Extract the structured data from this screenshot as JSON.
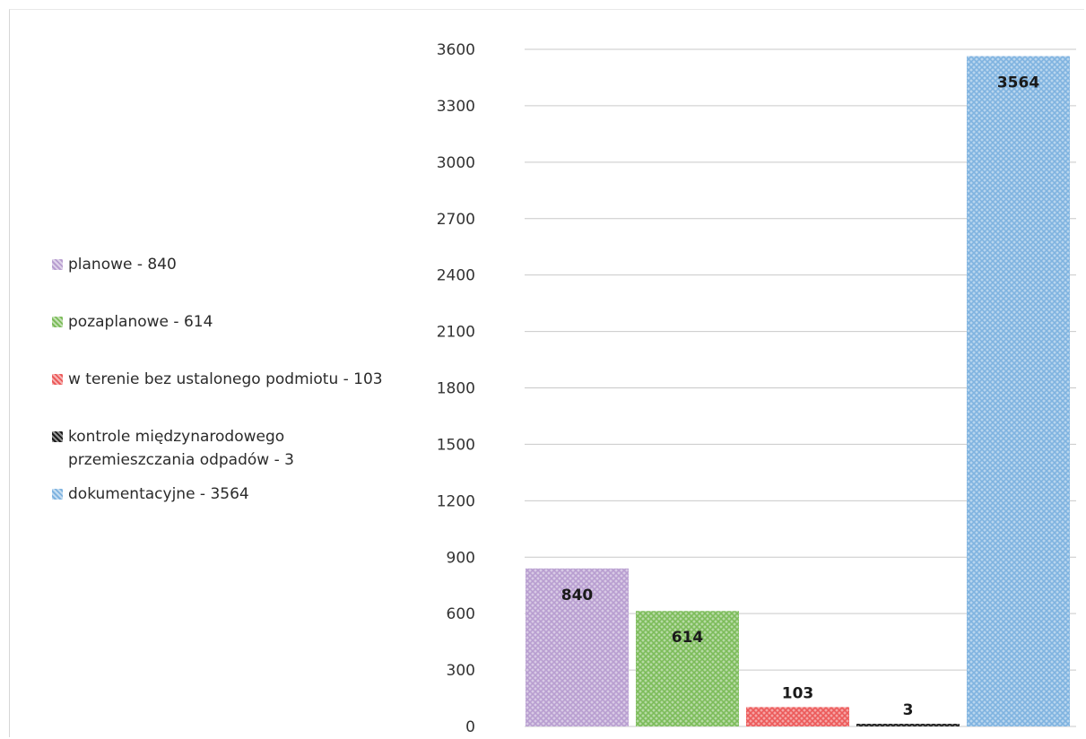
{
  "chart_data": {
    "type": "bar",
    "categories": [
      "planowe",
      "pozaplanowe",
      "w terenie bez ustalonego podmiotu",
      "kontrole międzynarodowego przemieszczania odpadów",
      "dokumentacyjne"
    ],
    "values": [
      840,
      614,
      103,
      3,
      3564
    ],
    "data_labels": [
      "840",
      "614",
      "103",
      "3",
      "3564"
    ],
    "colors": [
      "#b89ed0",
      "#7cbc5a",
      "#ec5a5a",
      "#1c1c1c",
      "#7fb3e0"
    ],
    "ylim": [
      0,
      3600
    ],
    "yticks": [
      "0",
      "300",
      "600",
      "900",
      "1200",
      "1500",
      "1800",
      "2100",
      "2400",
      "2700",
      "3000",
      "3300",
      "3600"
    ],
    "grid": true,
    "legend_position": "left",
    "legend": [
      "planowe - 840",
      "pozaplanowe - 614",
      "w terenie bez ustalonego podmiotu - 103",
      "kontrole międzynarodowego przemieszczania odpadów - 3",
      "dokumentacyjne - 3564"
    ]
  }
}
